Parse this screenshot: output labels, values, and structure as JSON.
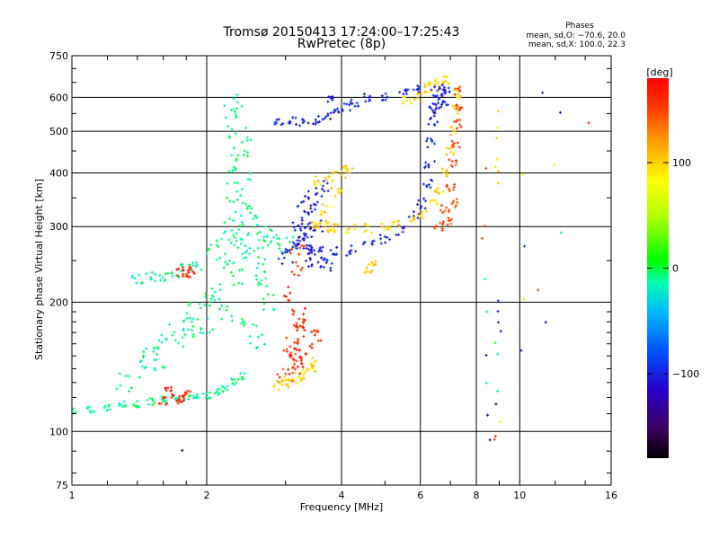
{
  "chart_data": {
    "type": "scatter",
    "title": "Tromsø 20150413 17:24:00–17:25:43",
    "subtitle": "RwPretec (8p)",
    "xlabel": "Frequency [MHz]",
    "ylabel": "Stationary phase Virtual Height [km]",
    "xscale": "log",
    "yscale": "log",
    "xlim": [
      1,
      16
    ],
    "ylim": [
      75,
      750
    ],
    "xticks": [
      1,
      2,
      4,
      6,
      8,
      10,
      16
    ],
    "yticks": [
      75,
      100,
      200,
      300,
      400,
      500,
      600,
      750
    ],
    "grid": true,
    "colorbar": {
      "label": "[deg]",
      "range": [
        -180,
        180
      ],
      "ticks": [
        100,
        0,
        -100
      ],
      "colormap": [
        "#000000",
        "#3c0064",
        "#2800c8",
        "#0050ff",
        "#00b4ff",
        "#00ffb4",
        "#00ff00",
        "#b4ff00",
        "#ffff00",
        "#ffa000",
        "#ff3c00",
        "#ff0000"
      ]
    },
    "annotation": {
      "title": "Phases",
      "line1": "mean, sd,O: −70.6, 20.0",
      "line2": "mean, sd,X: 100.0, 22.3"
    },
    "series": [
      {
        "phase": -10,
        "jitter": 0.22,
        "points": [
          [
            1.0,
            112
          ],
          [
            1.1,
            113
          ],
          [
            1.2,
            114
          ],
          [
            1.3,
            115
          ],
          [
            1.4,
            116
          ],
          [
            1.5,
            117
          ],
          [
            1.6,
            118
          ],
          [
            1.7,
            119
          ],
          [
            1.8,
            120
          ],
          [
            1.9,
            121
          ],
          [
            2.0,
            122
          ],
          [
            2.1,
            124
          ],
          [
            2.2,
            126
          ],
          [
            2.3,
            130
          ],
          [
            2.4,
            135
          ]
        ]
      },
      {
        "phase": -10,
        "jitter": 0.5,
        "points": [
          [
            1.3,
            130
          ],
          [
            1.4,
            140
          ],
          [
            1.5,
            150
          ],
          [
            1.6,
            160
          ],
          [
            1.7,
            170
          ],
          [
            1.8,
            180
          ],
          [
            1.9,
            190
          ],
          [
            2.0,
            200
          ],
          [
            1.6,
            145
          ],
          [
            1.8,
            165
          ],
          [
            2.0,
            175
          ],
          [
            2.2,
            190
          ],
          [
            2.1,
            210
          ],
          [
            2.3,
            230
          ],
          [
            2.2,
            250
          ],
          [
            2.4,
            270
          ],
          [
            2.3,
            290
          ],
          [
            2.5,
            260
          ],
          [
            2.6,
            240
          ],
          [
            2.7,
            220
          ],
          [
            2.8,
            200
          ],
          [
            2.5,
            180
          ],
          [
            2.6,
            160
          ]
        ]
      },
      {
        "phase": -10,
        "jitter": 0.55,
        "points": [
          [
            2.3,
            300
          ],
          [
            2.35,
            330
          ],
          [
            2.3,
            360
          ],
          [
            2.4,
            390
          ],
          [
            2.35,
            420
          ],
          [
            2.4,
            460
          ],
          [
            2.35,
            500
          ],
          [
            2.3,
            540
          ],
          [
            2.3,
            580
          ],
          [
            2.5,
            320
          ],
          [
            2.6,
            300
          ],
          [
            2.7,
            290
          ],
          [
            2.8,
            280
          ],
          [
            2.9,
            275
          ],
          [
            3.0,
            270
          ],
          [
            2.2,
            280
          ],
          [
            2.1,
            260
          ]
        ]
      },
      {
        "phase": -10,
        "jitter": 0.3,
        "points": [
          [
            1.4,
            225
          ],
          [
            1.5,
            228
          ],
          [
            1.6,
            230
          ],
          [
            1.7,
            234
          ],
          [
            1.8,
            238
          ],
          [
            1.9,
            243
          ]
        ]
      },
      {
        "phase": 160,
        "jitter": 0.25,
        "points": [
          [
            1.6,
            118
          ],
          [
            1.7,
            120
          ],
          [
            1.8,
            122
          ],
          [
            1.65,
            124
          ],
          [
            1.75,
            119
          ],
          [
            1.8,
            232
          ],
          [
            1.75,
            236
          ],
          [
            1.85,
            237
          ]
        ]
      },
      {
        "phase": 160,
        "jitter": 0.45,
        "points": [
          [
            3.1,
            140
          ],
          [
            3.2,
            145
          ],
          [
            3.3,
            150
          ],
          [
            3.1,
            160
          ],
          [
            3.2,
            170
          ],
          [
            3.3,
            180
          ],
          [
            3.4,
            175
          ],
          [
            3.5,
            165
          ],
          [
            3.2,
            155
          ],
          [
            3.1,
            150
          ],
          [
            3.0,
            135
          ],
          [
            3.2,
            190
          ],
          [
            3.1,
            210
          ],
          [
            3.15,
            240
          ],
          [
            3.2,
            260
          ]
        ]
      },
      {
        "phase": 100,
        "jitter": 0.3,
        "points": [
          [
            2.9,
            128
          ],
          [
            3.0,
            130
          ],
          [
            3.1,
            132
          ],
          [
            3.2,
            134
          ],
          [
            3.3,
            136
          ],
          [
            3.4,
            140
          ],
          [
            3.5,
            145
          ]
        ]
      },
      {
        "phase": -100,
        "jitter": 0.4,
        "points": [
          [
            3.0,
            255
          ],
          [
            3.1,
            265
          ],
          [
            3.2,
            275
          ],
          [
            3.3,
            285
          ],
          [
            3.4,
            290
          ],
          [
            3.5,
            300
          ],
          [
            3.3,
            310
          ],
          [
            3.4,
            330
          ],
          [
            3.5,
            350
          ],
          [
            3.6,
            370
          ],
          [
            3.2,
            300
          ],
          [
            3.3,
            340
          ],
          [
            3.5,
            260
          ],
          [
            3.6,
            250
          ],
          [
            3.7,
            245
          ],
          [
            3.4,
            250
          ],
          [
            3.5,
            270
          ]
        ]
      },
      {
        "phase": -100,
        "jitter": 0.3,
        "points": [
          [
            3.4,
            265
          ],
          [
            3.8,
            262
          ],
          [
            4.2,
            264
          ],
          [
            4.6,
            270
          ],
          [
            5.0,
            280
          ],
          [
            5.4,
            295
          ],
          [
            5.8,
            320
          ],
          [
            6.0,
            340
          ],
          [
            6.2,
            380
          ],
          [
            6.3,
            420
          ],
          [
            6.35,
            470
          ],
          [
            6.4,
            530
          ],
          [
            6.45,
            580
          ],
          [
            6.5,
            620
          ]
        ]
      },
      {
        "phase": -100,
        "jitter": 0.25,
        "points": [
          [
            2.9,
            530
          ],
          [
            3.1,
            528
          ],
          [
            3.3,
            527
          ],
          [
            3.5,
            530
          ],
          [
            3.7,
            540
          ],
          [
            3.9,
            555
          ],
          [
            4.1,
            570
          ],
          [
            4.3,
            585
          ],
          [
            4.6,
            600
          ],
          [
            5.0,
            605
          ],
          [
            5.5,
            615
          ],
          [
            5.9,
            630
          ],
          [
            3.8,
            600
          ]
        ]
      },
      {
        "phase": 100,
        "jitter": 0.35,
        "points": [
          [
            3.6,
            380
          ],
          [
            3.8,
            390
          ],
          [
            4.0,
            400
          ],
          [
            4.1,
            410
          ],
          [
            3.9,
            360
          ],
          [
            3.7,
            330
          ],
          [
            3.6,
            310
          ],
          [
            3.8,
            300
          ]
        ]
      },
      {
        "phase": 100,
        "jitter": 0.25,
        "points": [
          [
            3.5,
            300
          ],
          [
            3.8,
            298
          ],
          [
            4.2,
            296
          ],
          [
            4.6,
            297
          ],
          [
            5.0,
            300
          ],
          [
            5.3,
            305
          ],
          [
            5.7,
            310
          ],
          [
            6.1,
            320
          ],
          [
            6.4,
            340
          ],
          [
            6.6,
            360
          ],
          [
            6.8,
            400
          ],
          [
            7.0,
            450
          ],
          [
            7.1,
            500
          ],
          [
            7.15,
            560
          ],
          [
            7.2,
            610
          ],
          [
            6.2,
            630
          ],
          [
            6.4,
            650
          ],
          [
            6.6,
            640
          ],
          [
            6.8,
            660
          ],
          [
            5.9,
            600
          ],
          [
            5.6,
            590
          ],
          [
            4.6,
            240
          ],
          [
            4.7,
            245
          ]
        ]
      },
      {
        "phase": 150,
        "jitter": 0.25,
        "points": [
          [
            6.6,
            300
          ],
          [
            6.8,
            330
          ],
          [
            7.0,
            370
          ],
          [
            7.1,
            420
          ],
          [
            7.2,
            470
          ],
          [
            7.25,
            520
          ],
          [
            7.3,
            570
          ],
          [
            7.3,
            620
          ],
          [
            6.9,
            310
          ],
          [
            7.1,
            340
          ]
        ]
      },
      {
        "phase": -100,
        "jitter": 0.2,
        "points": [
          [
            6.5,
            560
          ],
          [
            6.6,
            600
          ],
          [
            6.7,
            630
          ],
          [
            6.8,
            580
          ],
          [
            6.9,
            620
          ]
        ]
      },
      {
        "phase": 100,
        "jitter": 0.1,
        "points": [
          [
            8.9,
            560
          ],
          [
            8.95,
            510
          ],
          [
            8.9,
            480
          ],
          [
            9.0,
            430
          ],
          [
            8.9,
            400
          ],
          [
            8.95,
            380
          ],
          [
            12.0,
            420
          ],
          [
            10.2,
            400
          ]
        ]
      },
      {
        "phase": 160,
        "jitter": 0.1,
        "points": [
          [
            8.3,
            300
          ],
          [
            8.3,
            280
          ],
          [
            8.8,
            95
          ],
          [
            8.9,
            98
          ],
          [
            11.0,
            215
          ],
          [
            14.3,
            520
          ],
          [
            8.4,
            410
          ]
        ]
      },
      {
        "phase": -100,
        "jitter": 0.1,
        "points": [
          [
            8.95,
            200
          ],
          [
            9.0,
            190
          ],
          [
            8.95,
            180
          ],
          [
            9.0,
            170
          ],
          [
            10.3,
            270
          ],
          [
            10.0,
            155
          ],
          [
            11.4,
            180
          ],
          [
            11.3,
            610
          ],
          [
            12.3,
            550
          ],
          [
            10.1,
            75
          ]
        ]
      },
      {
        "phase": -10,
        "jitter": 0.1,
        "points": [
          [
            8.4,
            225
          ],
          [
            8.5,
            190
          ],
          [
            8.9,
            160
          ],
          [
            9.0,
            150
          ],
          [
            8.45,
            130
          ],
          [
            9.0,
            125
          ],
          [
            12.3,
            290
          ]
        ]
      },
      {
        "phase": -150,
        "jitter": 0.1,
        "points": [
          [
            1.75,
            90
          ],
          [
            8.4,
            110
          ],
          [
            8.5,
            95
          ],
          [
            8.9,
            115
          ],
          [
            8.4,
            150
          ],
          [
            10.2,
            75
          ]
        ]
      },
      {
        "phase": 60,
        "jitter": 0.1,
        "points": [
          [
            9.0,
            105
          ],
          [
            8.9,
            410
          ],
          [
            10.3,
            205
          ]
        ]
      }
    ]
  }
}
